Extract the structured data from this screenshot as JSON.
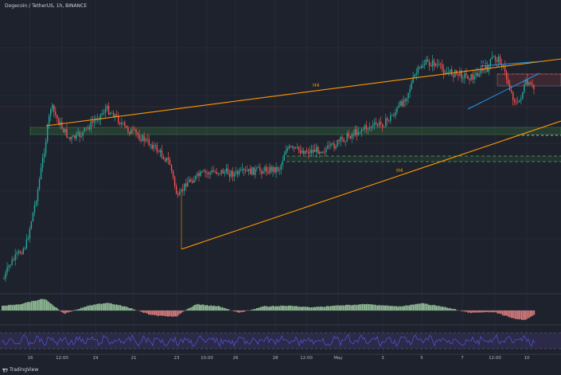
{
  "header": {
    "symbol_title": "Dogecoin / TetherUS, 1h, BINANCE"
  },
  "brand": {
    "name": "TradingView",
    "icon": "tradingview-logo-icon"
  },
  "colors": {
    "background": "#1e222d",
    "up_candle": "#26a69a",
    "down_candle": "#ef5350",
    "trendline": "#ff9800",
    "channel_line": "#2196f3",
    "support_zone": "#4caf50",
    "resistance_zone": "#ef5350",
    "osc_positive": "#a5d6a7",
    "osc_negative": "#f48a8a",
    "rsi_line": "#4a55d0",
    "rsi_band": "#3b2f5e"
  },
  "chart_data": {
    "type": "candlestick",
    "title": "Dogecoin / TetherUS, 1h, BINANCE",
    "x_tick_labels": [
      "16",
      "12:00",
      "19",
      "21",
      "23",
      "10:00",
      "26",
      "28",
      "12:00",
      "May",
      "3",
      "5",
      "7",
      "12:00",
      "10"
    ],
    "price_path_relative": [
      [
        0.0,
        0.95
      ],
      [
        0.01,
        0.9
      ],
      [
        0.04,
        0.83
      ],
      [
        0.06,
        0.65
      ],
      [
        0.075,
        0.47
      ],
      [
        0.085,
        0.34
      ],
      [
        0.1,
        0.4
      ],
      [
        0.12,
        0.46
      ],
      [
        0.14,
        0.44
      ],
      [
        0.16,
        0.4
      ],
      [
        0.185,
        0.35
      ],
      [
        0.2,
        0.37
      ],
      [
        0.22,
        0.42
      ],
      [
        0.24,
        0.44
      ],
      [
        0.27,
        0.48
      ],
      [
        0.3,
        0.54
      ],
      [
        0.315,
        0.67
      ],
      [
        0.33,
        0.61
      ],
      [
        0.36,
        0.58
      ],
      [
        0.39,
        0.57
      ],
      [
        0.42,
        0.58
      ],
      [
        0.45,
        0.57
      ],
      [
        0.5,
        0.56
      ],
      [
        0.51,
        0.49
      ],
      [
        0.55,
        0.5
      ],
      [
        0.59,
        0.49
      ],
      [
        0.62,
        0.45
      ],
      [
        0.65,
        0.42
      ],
      [
        0.69,
        0.4
      ],
      [
        0.71,
        0.36
      ],
      [
        0.73,
        0.3
      ],
      [
        0.745,
        0.23
      ],
      [
        0.76,
        0.19
      ],
      [
        0.78,
        0.19
      ],
      [
        0.8,
        0.22
      ],
      [
        0.83,
        0.23
      ],
      [
        0.85,
        0.24
      ],
      [
        0.86,
        0.22
      ],
      [
        0.875,
        0.21
      ],
      [
        0.885,
        0.17
      ],
      [
        0.9,
        0.18
      ],
      [
        0.92,
        0.3
      ],
      [
        0.93,
        0.34
      ],
      [
        0.945,
        0.26
      ],
      [
        0.96,
        0.28
      ]
    ],
    "annotations": [
      {
        "label": "H4",
        "kind": "upper-trendline"
      },
      {
        "label": "H4",
        "kind": "lower-trendline"
      },
      {
        "label": "H1",
        "kind": "rising-channel"
      }
    ],
    "indicators": [
      "histogram-oscillator",
      "rsi"
    ]
  }
}
